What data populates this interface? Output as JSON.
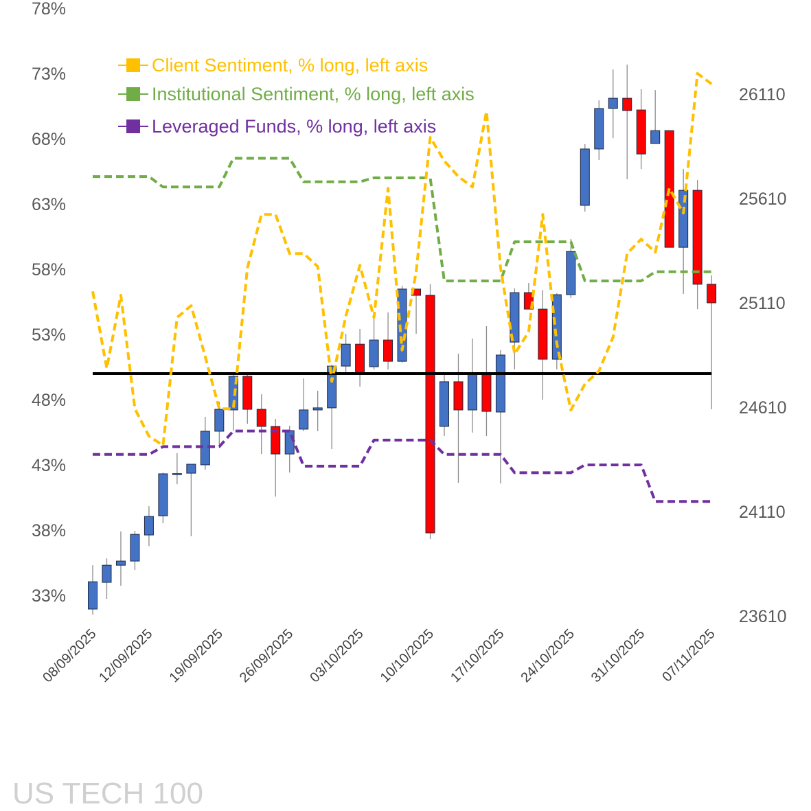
{
  "chart_data": {
    "type": "candlestick+line",
    "title": "US TECH 100",
    "left_axis": {
      "ticks": [
        "78%",
        "73%",
        "68%",
        "63%",
        "58%",
        "53%",
        "48%",
        "43%",
        "38%",
        "33%"
      ],
      "range": [
        33,
        78
      ]
    },
    "right_axis": {
      "ticks": [
        "26110",
        "25610",
        "25110",
        "24610",
        "24110",
        "23610"
      ],
      "range": [
        23610,
        26610
      ]
    },
    "reference_line": 50,
    "x_tick_labels": [
      "08/09/2025",
      "12/09/2025",
      "19/09/2025",
      "26/09/2025",
      "03/10/2025",
      "10/10/2025",
      "17/10/2025",
      "24/10/2025",
      "31/10/2025",
      "07/11/2025"
    ],
    "x_tick_indices": [
      0,
      4,
      9,
      14,
      19,
      24,
      29,
      34,
      39,
      44
    ],
    "x": [
      "08/09",
      "09/09",
      "10/09",
      "11/09",
      "12/09",
      "15/09",
      "16/09",
      "17/09",
      "18/09",
      "19/09",
      "22/09",
      "23/09",
      "24/09",
      "25/09",
      "26/09",
      "29/09",
      "30/09",
      "01/10",
      "02/10",
      "03/10",
      "06/10",
      "07/10",
      "08/10",
      "09/10",
      "10/10",
      "13/10",
      "14/10",
      "15/10",
      "16/10",
      "17/10",
      "20/10",
      "21/10",
      "22/10",
      "23/10",
      "24/10",
      "27/10",
      "28/10",
      "29/10",
      "30/10",
      "31/10",
      "03/11",
      "04/11",
      "05/11",
      "06/11",
      "07/11"
    ],
    "ohlc": [
      [
        23643,
        23853,
        23617,
        23774
      ],
      [
        23771,
        23886,
        23692,
        23853
      ],
      [
        23853,
        24015,
        23755,
        23873
      ],
      [
        23873,
        24018,
        23830,
        24001
      ],
      [
        23998,
        24136,
        23945,
        24087
      ],
      [
        24090,
        24297,
        24054,
        24291
      ],
      [
        24291,
        24390,
        24241,
        24292
      ],
      [
        24294,
        24337,
        23992,
        24337
      ],
      [
        24334,
        24564,
        24311,
        24495
      ],
      [
        24495,
        24636,
        24416,
        24600
      ],
      [
        24597,
        24778,
        24498,
        24758
      ],
      [
        24758,
        24778,
        24531,
        24600
      ],
      [
        24600,
        24672,
        24386,
        24518
      ],
      [
        24518,
        24554,
        24182,
        24386
      ],
      [
        24386,
        24521,
        24297,
        24498
      ],
      [
        24505,
        24748,
        24495,
        24597
      ],
      [
        24597,
        24689,
        24495,
        24607
      ],
      [
        24607,
        24814,
        24409,
        24807
      ],
      [
        24807,
        24962,
        24778,
        24912
      ],
      [
        24912,
        24985,
        24709,
        24768
      ],
      [
        24804,
        25037,
        24791,
        24932
      ],
      [
        24932,
        25064,
        24791,
        24830
      ],
      [
        24830,
        25192,
        24824,
        25176
      ],
      [
        25176,
        25176,
        24962,
        25146
      ],
      [
        25146,
        25199,
        23978,
        24008
      ],
      [
        24518,
        24778,
        24472,
        24732
      ],
      [
        24732,
        24866,
        24248,
        24597
      ],
      [
        24597,
        24939,
        24488,
        24768
      ],
      [
        24768,
        24998,
        24472,
        24590
      ],
      [
        24587,
        24883,
        24245,
        24860
      ],
      [
        24922,
        25179,
        24791,
        25159
      ],
      [
        25159,
        25205,
        25080,
        25080
      ],
      [
        25080,
        25172,
        24646,
        24840
      ],
      [
        24840,
        25156,
        24791,
        25149
      ],
      [
        25149,
        25416,
        25133,
        25356
      ],
      [
        25577,
        25870,
        25547,
        25847
      ],
      [
        25847,
        26080,
        25794,
        26041
      ],
      [
        26041,
        26228,
        25899,
        26090
      ],
      [
        26090,
        26251,
        25702,
        26031
      ],
      [
        26034,
        26133,
        25751,
        25823
      ],
      [
        25873,
        26129,
        25873,
        25935
      ],
      [
        25935,
        25935,
        25376,
        25376
      ],
      [
        25376,
        25751,
        25153,
        25649
      ],
      [
        25649,
        25699,
        25080,
        25199
      ],
      [
        25199,
        25241,
        24600,
        25110
      ]
    ],
    "series": [
      {
        "name": "Client Sentiment, % long, left axis",
        "color": "#FFC000",
        "values": [
          56.3,
          50.4,
          56.0,
          47.3,
          45.2,
          44.5,
          54.3,
          55.2,
          51.3,
          47.3,
          47.3,
          58.1,
          62.2,
          62.2,
          59.2,
          59.2,
          58.2,
          49.4,
          54.4,
          58.3,
          54.3,
          64.2,
          51.8,
          57.8,
          68.1,
          66.3,
          65.1,
          64.3,
          70.1,
          58.1,
          51.5,
          53.2,
          62.2,
          52.3,
          47.2,
          49.2,
          50.2,
          52.8,
          59.2,
          60.3,
          59.3,
          64.2,
          62.3,
          73.0,
          72.2
        ]
      },
      {
        "name": "Institutional Sentiment, % long, left axis",
        "color": "#70AD47",
        "values": [
          65.1,
          65.1,
          65.1,
          65.1,
          65.1,
          64.3,
          64.3,
          64.3,
          64.3,
          64.3,
          66.5,
          66.5,
          66.5,
          66.5,
          66.5,
          64.7,
          64.7,
          64.7,
          64.7,
          64.7,
          65.0,
          65.0,
          65.0,
          65.0,
          65.0,
          57.1,
          57.1,
          57.1,
          57.1,
          57.1,
          60.1,
          60.1,
          60.1,
          60.1,
          60.1,
          57.1,
          57.1,
          57.1,
          57.1,
          57.1,
          57.8,
          57.8,
          57.8,
          57.8,
          57.8
        ]
      },
      {
        "name": "Leveraged Funds, % long, left axis",
        "color": "#7030A0",
        "values": [
          43.8,
          43.8,
          43.8,
          43.8,
          43.8,
          44.4,
          44.4,
          44.4,
          44.4,
          44.4,
          45.6,
          45.6,
          45.6,
          45.6,
          45.6,
          42.9,
          42.9,
          42.9,
          42.9,
          42.9,
          44.9,
          44.9,
          44.9,
          44.9,
          44.9,
          43.8,
          43.8,
          43.8,
          43.8,
          43.8,
          42.4,
          42.4,
          42.4,
          42.4,
          42.4,
          43.0,
          43.0,
          43.0,
          43.0,
          43.0,
          40.2,
          40.2,
          40.2,
          40.2,
          40.2
        ]
      }
    ],
    "up_color": "#4472C4",
    "down_color": "#FF0000",
    "legend_placement": "top-left"
  }
}
